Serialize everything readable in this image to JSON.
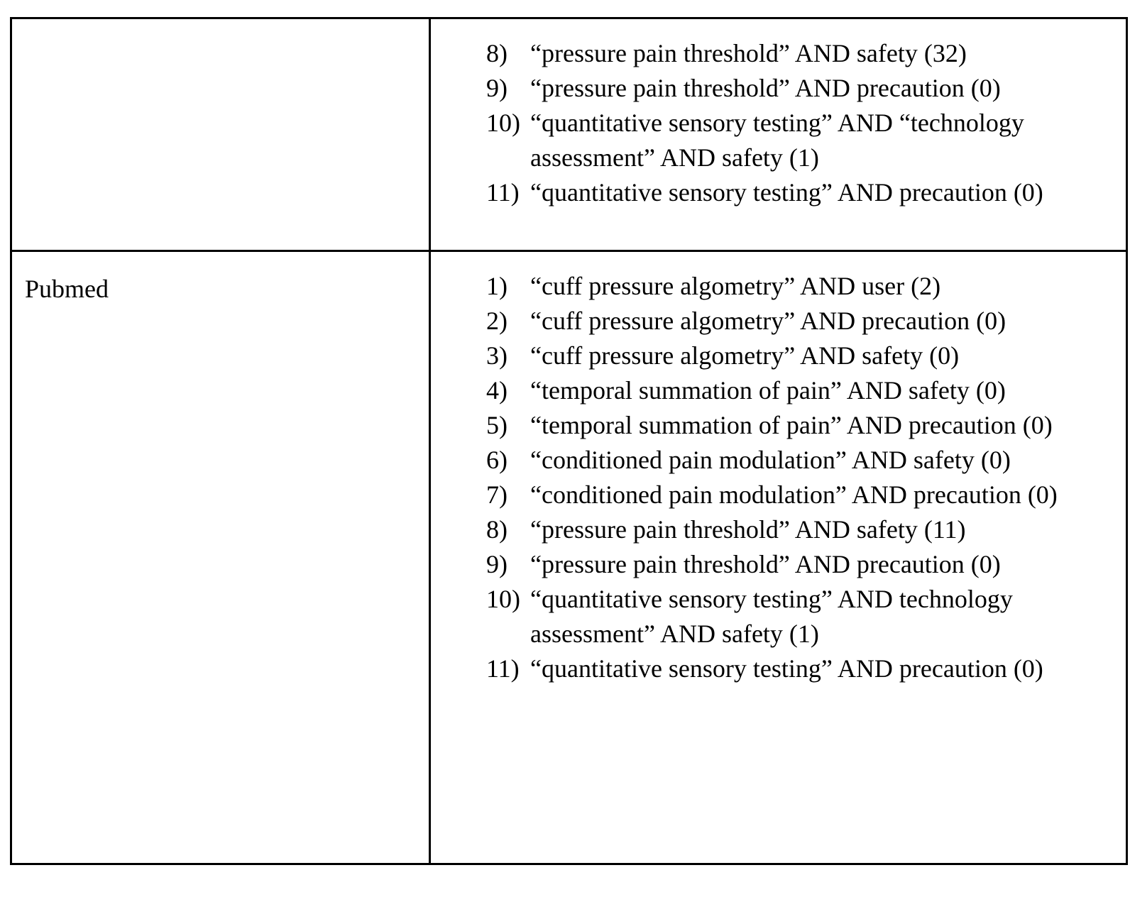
{
  "table": {
    "rows": [
      {
        "database": "",
        "terms": [
          {
            "num": "8)",
            "text": "“pressure pain threshold” AND safety (32)"
          },
          {
            "num": "9)",
            "text": "“pressure pain threshold” AND precaution (0)"
          },
          {
            "num": "10)",
            "text": "“quantitative sensory testing” AND “technology assessment” AND safety (1)"
          },
          {
            "num": "11)",
            "text": "“quantitative sensory testing” AND precaution (0)"
          }
        ]
      },
      {
        "database": "Pubmed",
        "terms": [
          {
            "num": "1)",
            "text": "“cuff pressure algometry” AND user (2)"
          },
          {
            "num": "2)",
            "text": "“cuff pressure algometry” AND precaution (0)"
          },
          {
            "num": "3)",
            "text": "“cuff pressure algometry” AND safety (0)"
          },
          {
            "num": "4)",
            "text": "“temporal summation of pain” AND safety (0)"
          },
          {
            "num": "5)",
            "text": "“temporal summation of pain” AND precaution (0)"
          },
          {
            "num": "6)",
            "text": "“conditioned pain modulation” AND safety (0)"
          },
          {
            "num": "7)",
            "text": "“conditioned pain modulation” AND precaution (0)"
          },
          {
            "num": "8)",
            "text": "“pressure pain threshold” AND safety (11)"
          },
          {
            "num": "9)",
            "text": "“pressure pain threshold” AND precaution (0)"
          },
          {
            "num": "10)",
            "text": "“quantitative sensory testing” AND technology assessment” AND safety (1)"
          },
          {
            "num": "11)",
            "text": "“quantitative sensory testing” AND precaution (0)"
          }
        ]
      }
    ]
  }
}
